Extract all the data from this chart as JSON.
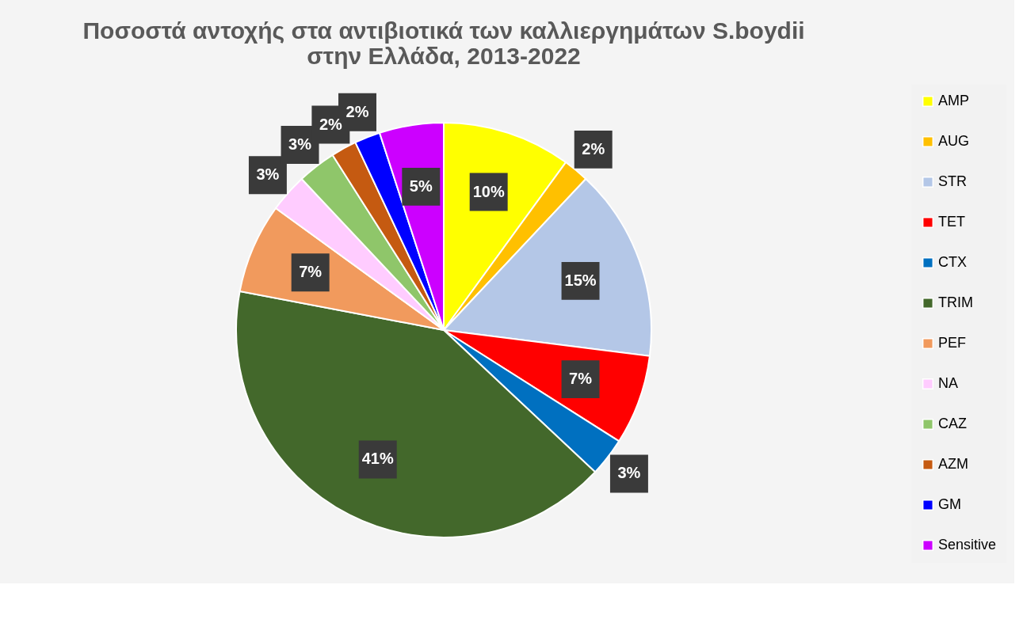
{
  "chart_data": {
    "type": "pie",
    "title": "Ποσοστά αντοχής στα αντιβιοτικά των καλλιεργημάτων S.boydii\nστην Ελλάδα, 2013-2022",
    "categories": [
      "AMP",
      "AUG",
      "STR",
      "TET",
      "CTX",
      "TRIM",
      "PEF",
      "NA",
      "CAZ",
      "AZM",
      "GM",
      "Sensitive"
    ],
    "values": [
      10,
      2,
      15,
      7,
      3,
      41,
      7,
      3,
      3,
      2,
      2,
      5
    ],
    "value_labels": [
      "10%",
      "2%",
      "15%",
      "7%",
      "3%",
      "41%",
      "7%",
      "3%",
      "3%",
      "2%",
      "2%",
      "5%"
    ],
    "colors": [
      "#ffff00",
      "#ffc000",
      "#b4c7e7",
      "#ff0000",
      "#0070c0",
      "#43682b",
      "#f19a5d",
      "#ffccff",
      "#8fc66a",
      "#c55a11",
      "#0000ff",
      "#cc00ff"
    ],
    "legend": "right"
  }
}
